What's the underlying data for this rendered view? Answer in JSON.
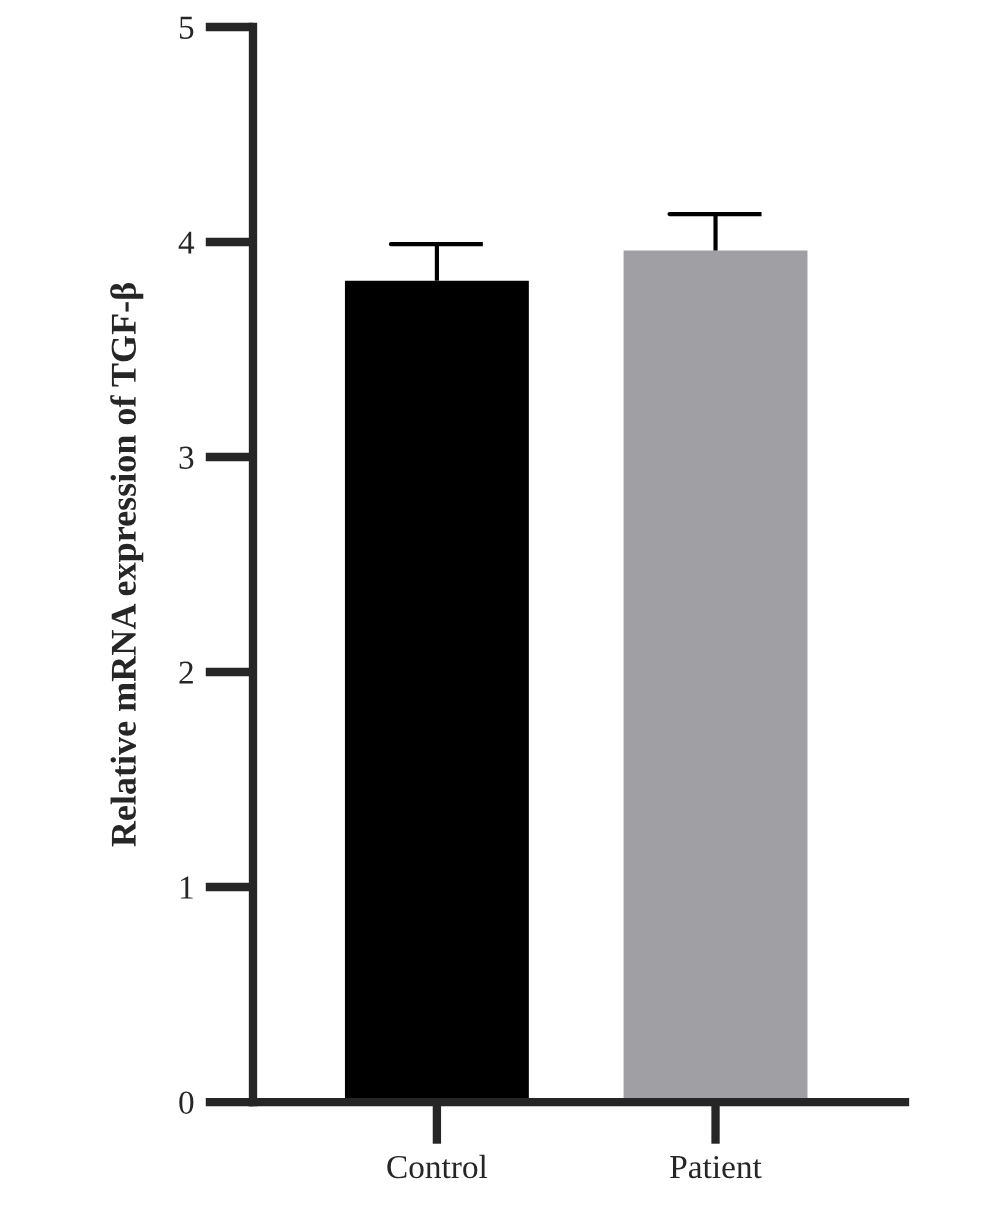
{
  "chart_data": {
    "type": "bar",
    "ylabel": "Relative mRNA expression of TGF-β",
    "categories": [
      "Control",
      "Patient"
    ],
    "values": [
      3.82,
      3.96
    ],
    "colors": [
      "#000000",
      "#a09fa4"
    ],
    "errors": [
      [
        3.82,
        3.99
      ],
      [
        3.96,
        4.13
      ]
    ],
    "ylim": [
      0,
      5
    ],
    "yticks": [
      0,
      1,
      2,
      3,
      4,
      5
    ],
    "grid": false,
    "legend": false
  }
}
